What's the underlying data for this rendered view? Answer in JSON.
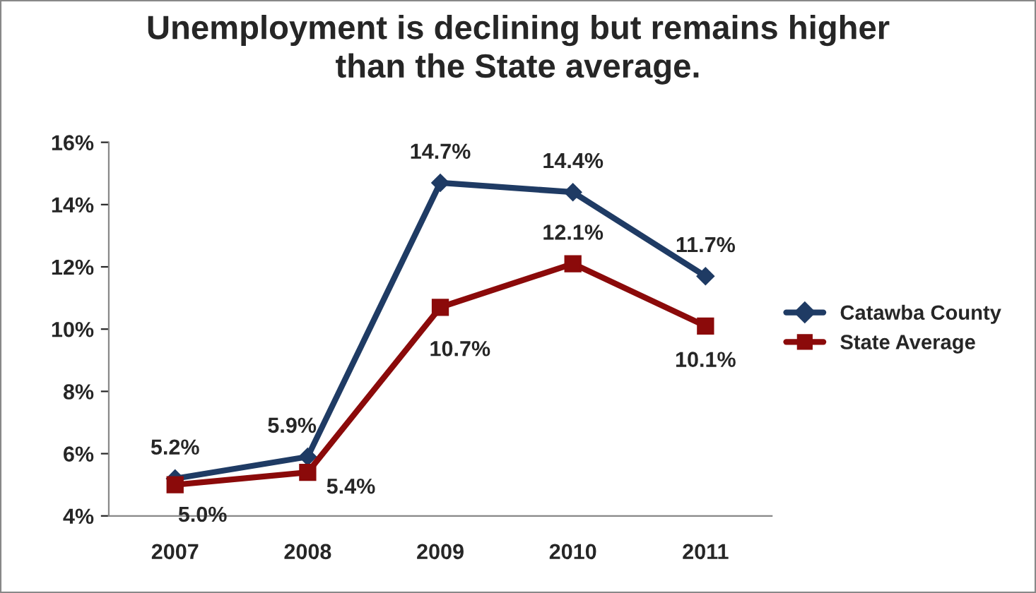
{
  "chart_data": {
    "type": "line",
    "title": "Unemployment is declining but remains higher\nthan the State average.",
    "categories": [
      "2007",
      "2008",
      "2009",
      "2010",
      "2011"
    ],
    "series": [
      {
        "name": "Catawba County",
        "color": "#1f3b64",
        "marker": "diamond",
        "values": [
          5.2,
          5.9,
          14.7,
          14.4,
          11.7
        ],
        "value_labels": [
          "5.2%",
          "5.9%",
          "14.7%",
          "14.4%",
          "11.7%"
        ]
      },
      {
        "name": "State Average",
        "color": "#8b0a0a",
        "marker": "square",
        "values": [
          5.0,
          5.4,
          10.7,
          12.1,
          10.1
        ],
        "value_labels": [
          "5.0%",
          "5.4%",
          "10.7%",
          "12.1%",
          "10.1%"
        ]
      }
    ],
    "ylim": [
      4,
      16
    ],
    "yticks": [
      {
        "value": 4,
        "label": "4%"
      },
      {
        "value": 6,
        "label": "6%"
      },
      {
        "value": 8,
        "label": "8%"
      },
      {
        "value": 10,
        "label": "10%"
      },
      {
        "value": 12,
        "label": "12%"
      },
      {
        "value": 14,
        "label": "14%"
      },
      {
        "value": 16,
        "label": "16%"
      }
    ],
    "grid": false,
    "legend": "right",
    "line_style": "solid"
  }
}
